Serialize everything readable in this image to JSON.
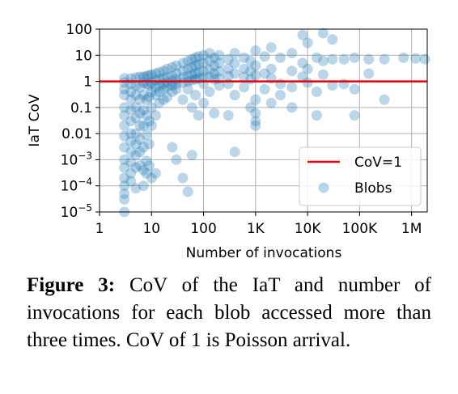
{
  "chart_data": {
    "type": "scatter",
    "xlabel": "Number of invocations",
    "ylabel": "IaT CoV",
    "x_scale": "log",
    "y_scale": "log",
    "xlim": [
      1,
      2000000
    ],
    "ylim": [
      1e-05,
      100
    ],
    "x_ticks": [
      {
        "value": 1,
        "label": "1"
      },
      {
        "value": 10,
        "label": "10"
      },
      {
        "value": 100,
        "label": "100"
      },
      {
        "value": 1000,
        "label": "1K"
      },
      {
        "value": 10000,
        "label": "10K"
      },
      {
        "value": 100000,
        "label": "100K"
      },
      {
        "value": 1000000,
        "label": "1M"
      }
    ],
    "y_ticks": [
      {
        "value": 100,
        "label": "100"
      },
      {
        "value": 10,
        "label": "10"
      },
      {
        "value": 1,
        "label": "1"
      },
      {
        "value": 0.1,
        "label": "0.1"
      },
      {
        "value": 0.01,
        "label": "0.01"
      },
      {
        "value": 0.001,
        "base": "10",
        "exp": "−3"
      },
      {
        "value": 0.0001,
        "base": "10",
        "exp": "−4"
      },
      {
        "value": 1e-05,
        "base": "10",
        "exp": "−5"
      }
    ],
    "grid": true,
    "legend_position": "lower-right",
    "reference_line": {
      "y": 1,
      "label": "CoV=1",
      "color": "#e8000b"
    },
    "series": [
      {
        "name": "Blobs",
        "color": "#1f77b4",
        "points": [
          [
            3,
            1.3
          ],
          [
            3,
            0.9
          ],
          [
            3,
            0.5
          ],
          [
            3,
            0.3
          ],
          [
            3,
            0.1
          ],
          [
            3,
            0.05
          ],
          [
            3,
            0.02
          ],
          [
            3,
            0.008
          ],
          [
            3,
            0.003
          ],
          [
            3,
            0.001
          ],
          [
            3,
            0.0005
          ],
          [
            3,
            0.0002
          ],
          [
            3,
            0.0001
          ],
          [
            3,
            5e-05
          ],
          [
            3,
            3e-05
          ],
          [
            3,
            1e-05
          ],
          [
            4,
            1.3
          ],
          [
            4,
            0.8
          ],
          [
            4,
            0.4
          ],
          [
            4,
            0.2
          ],
          [
            4,
            0.08
          ],
          [
            4,
            0.03
          ],
          [
            4,
            0.01
          ],
          [
            4,
            0.005
          ],
          [
            4,
            0.002
          ],
          [
            4,
            0.0008
          ],
          [
            4,
            0.0003
          ],
          [
            4,
            0.00015
          ],
          [
            5,
            1.4
          ],
          [
            5,
            0.7
          ],
          [
            5,
            0.3
          ],
          [
            5,
            0.1
          ],
          [
            5,
            0.04
          ],
          [
            5,
            0.01
          ],
          [
            5,
            0.004
          ],
          [
            5,
            0.0015
          ],
          [
            5,
            0.0005
          ],
          [
            5,
            8e-05
          ],
          [
            6,
            1.5
          ],
          [
            6,
            0.6
          ],
          [
            6,
            0.2
          ],
          [
            6,
            0.06
          ],
          [
            6,
            0.02
          ],
          [
            6,
            0.006
          ],
          [
            6,
            0.002
          ],
          [
            6,
            0.0006
          ],
          [
            7,
            1.5
          ],
          [
            7,
            0.9
          ],
          [
            7,
            0.3
          ],
          [
            7,
            0.08
          ],
          [
            7,
            0.02
          ],
          [
            7,
            0.003
          ],
          [
            7,
            0.0004
          ],
          [
            7,
            0.0001
          ],
          [
            8,
            1.6
          ],
          [
            8,
            0.8
          ],
          [
            8,
            0.2
          ],
          [
            8,
            0.05
          ],
          [
            8,
            0.009
          ],
          [
            8,
            0.0009
          ],
          [
            8,
            0.0003
          ],
          [
            9,
            1.7
          ],
          [
            9,
            0.7
          ],
          [
            9,
            0.25
          ],
          [
            9,
            0.03
          ],
          [
            9,
            0.004
          ],
          [
            9,
            0.0006
          ],
          [
            10,
            1.8
          ],
          [
            10,
            0.9
          ],
          [
            10,
            0.4
          ],
          [
            10,
            0.1
          ],
          [
            10,
            0.02
          ],
          [
            10,
            0.0002
          ],
          [
            12,
            2.0
          ],
          [
            12,
            1.1
          ],
          [
            12,
            0.6
          ],
          [
            12,
            0.3
          ],
          [
            12,
            0.05
          ],
          [
            12,
            0.0003
          ],
          [
            14,
            2.2
          ],
          [
            14,
            1.2
          ],
          [
            14,
            0.7
          ],
          [
            14,
            0.4
          ],
          [
            14,
            0.15
          ],
          [
            17,
            2.5
          ],
          [
            17,
            1.3
          ],
          [
            17,
            0.8
          ],
          [
            17,
            0.5
          ],
          [
            17,
            0.2
          ],
          [
            20,
            3.0
          ],
          [
            20,
            1.5
          ],
          [
            20,
            0.9
          ],
          [
            20,
            0.6
          ],
          [
            20,
            0.25
          ],
          [
            25,
            3.5
          ],
          [
            25,
            1.6
          ],
          [
            25,
            1.0
          ],
          [
            25,
            0.7
          ],
          [
            25,
            0.4
          ],
          [
            25,
            0.003
          ],
          [
            30,
            4.0
          ],
          [
            30,
            2.0
          ],
          [
            30,
            1.2
          ],
          [
            30,
            0.8
          ],
          [
            30,
            0.5
          ],
          [
            30,
            0.001
          ],
          [
            40,
            5.0
          ],
          [
            40,
            2.5
          ],
          [
            40,
            1.4
          ],
          [
            40,
            0.9
          ],
          [
            40,
            0.2
          ],
          [
            40,
            0.0002
          ],
          [
            50,
            6.0
          ],
          [
            50,
            3.0
          ],
          [
            50,
            1.6
          ],
          [
            50,
            1.0
          ],
          [
            50,
            0.5
          ],
          [
            50,
            6e-05
          ],
          [
            60,
            7.0
          ],
          [
            60,
            3.5
          ],
          [
            60,
            1.8
          ],
          [
            60,
            1.1
          ],
          [
            60,
            0.1
          ],
          [
            60,
            0.0015
          ],
          [
            70,
            8.0
          ],
          [
            70,
            4.0
          ],
          [
            70,
            2.0
          ],
          [
            70,
            1.2
          ],
          [
            70,
            0.3
          ],
          [
            80,
            9.0
          ],
          [
            80,
            4.5
          ],
          [
            80,
            2.2
          ],
          [
            80,
            1.3
          ],
          [
            80,
            0.05
          ],
          [
            100,
            10.0
          ],
          [
            100,
            5.0
          ],
          [
            100,
            2.5
          ],
          [
            100,
            1.4
          ],
          [
            100,
            0.8
          ],
          [
            100,
            0.15
          ],
          [
            130,
            12.0
          ],
          [
            130,
            6.0
          ],
          [
            130,
            2.8
          ],
          [
            130,
            1.5
          ],
          [
            130,
            0.4
          ],
          [
            160,
            8.0
          ],
          [
            160,
            4.0
          ],
          [
            160,
            2.0
          ],
          [
            160,
            1.2
          ],
          [
            160,
            0.06
          ],
          [
            200,
            10.0
          ],
          [
            200,
            5.0
          ],
          [
            200,
            2.4
          ],
          [
            200,
            1.3
          ],
          [
            200,
            0.7
          ],
          [
            300,
            7.0
          ],
          [
            300,
            3.0
          ],
          [
            300,
            1.6
          ],
          [
            300,
            0.8
          ],
          [
            300,
            0.05
          ],
          [
            400,
            12.0
          ],
          [
            400,
            5.0
          ],
          [
            400,
            2.0
          ],
          [
            400,
            0.3
          ],
          [
            400,
            0.002
          ],
          [
            600,
            8.0
          ],
          [
            600,
            3.0
          ],
          [
            600,
            1.5
          ],
          [
            600,
            0.6
          ],
          [
            800,
            6.0
          ],
          [
            800,
            2.5
          ],
          [
            800,
            1.2
          ],
          [
            800,
            0.1
          ],
          [
            1000,
            15.0
          ],
          [
            1000,
            4.0
          ],
          [
            1000,
            1.7
          ],
          [
            1000,
            0.06
          ],
          [
            1000,
            0.03
          ],
          [
            1000,
            0.02
          ],
          [
            1000,
            0.2
          ],
          [
            1500,
            9.0
          ],
          [
            1500,
            2.0
          ],
          [
            1500,
            0.5
          ],
          [
            2000,
            20.0
          ],
          [
            2000,
            3.0
          ],
          [
            2000,
            1.3
          ],
          [
            2000,
            0.15
          ],
          [
            3000,
            8.0
          ],
          [
            3000,
            0.8
          ],
          [
            3000,
            0.3
          ],
          [
            5000,
            12.0
          ],
          [
            5000,
            2.5
          ],
          [
            5000,
            0.6
          ],
          [
            5000,
            0.1
          ],
          [
            8000,
            60.0
          ],
          [
            8000,
            5.0
          ],
          [
            8000,
            1.5
          ],
          [
            10000,
            30.0
          ],
          [
            10000,
            3.0
          ],
          [
            10000,
            0.9
          ],
          [
            15000,
            8.0
          ],
          [
            15000,
            0.4
          ],
          [
            15000,
            0.05
          ],
          [
            20000,
            70.0
          ],
          [
            20000,
            6.0
          ],
          [
            20000,
            1.8
          ],
          [
            30000,
            40.0
          ],
          [
            30000,
            7.0
          ],
          [
            30000,
            0.7
          ],
          [
            50000,
            7.0
          ],
          [
            50000,
            0.8
          ],
          [
            80000,
            8.0
          ],
          [
            80000,
            0.5
          ],
          [
            80000,
            0.05
          ],
          [
            150000,
            7.0
          ],
          [
            150000,
            2.0
          ],
          [
            300000,
            7.0
          ],
          [
            300000,
            0.2
          ],
          [
            700000,
            8.0
          ],
          [
            1200000,
            7.5
          ],
          [
            1800000,
            7.0
          ]
        ]
      }
    ]
  },
  "caption": {
    "label": "Figure 3:",
    "text": " CoV of the IaT and number of invocations for each blob accessed more than three times. CoV of 1 is Poisson arrival."
  }
}
